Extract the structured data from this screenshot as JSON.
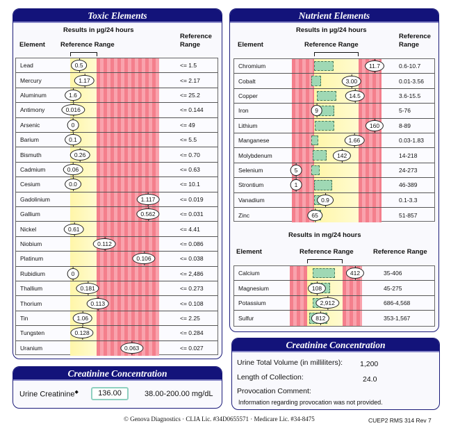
{
  "toxic": {
    "title": "Toxic Elements",
    "units": "Results in µg/24 hours",
    "col_element": "Element",
    "col_range": "Reference Range",
    "col_ref": "Reference Range",
    "rows": [
      {
        "name": "Lead",
        "value": "0.5",
        "ref": "<= 1.5"
      },
      {
        "name": "Mercury",
        "value": "1.17",
        "ref": "<= 2.17"
      },
      {
        "name": "Aluminum",
        "value": "1.6",
        "ref": "<= 25.2"
      },
      {
        "name": "Antimony",
        "value": "0.016",
        "ref": "<= 0.144"
      },
      {
        "name": "Arsenic",
        "value": "0",
        "ref": "<= 49"
      },
      {
        "name": "Barium",
        "value": "0.1",
        "ref": "<= 5.5"
      },
      {
        "name": "Bismuth",
        "value": "0.26",
        "ref": "<= 0.70"
      },
      {
        "name": "Cadmium",
        "value": "0.06",
        "ref": "<= 0.63"
      },
      {
        "name": "Cesium",
        "value": "0.0",
        "ref": "<= 10.1"
      },
      {
        "name": "Gadolinium",
        "value": "1.117",
        "ref": "<= 0.019"
      },
      {
        "name": "Gallium",
        "value": "0.562",
        "ref": "<= 0.031"
      },
      {
        "name": "Nickel",
        "value": "0.61",
        "ref": "<= 4.41"
      },
      {
        "name": "Niobium",
        "value": "0.112",
        "ref": "<= 0.086"
      },
      {
        "name": "Platinum",
        "value": "0.106",
        "ref": "<= 0.038"
      },
      {
        "name": "Rubidium",
        "value": "0",
        "ref": "<= 2,486"
      },
      {
        "name": "Thallium",
        "value": "0.181",
        "ref": "<= 0.273"
      },
      {
        "name": "Thorium",
        "value": "0.113",
        "ref": "<= 0.108"
      },
      {
        "name": "Tin",
        "value": "1.06",
        "ref": "<= 2.25"
      },
      {
        "name": "Tungsten",
        "value": "0.128",
        "ref": "<= 0.284"
      },
      {
        "name": "Uranium",
        "value": "0.063",
        "ref": "<= 0.027"
      }
    ]
  },
  "nutrient": {
    "title": "Nutrient Elements",
    "units": "Results in µg/24 hours",
    "col_element": "Element",
    "col_range": "Reference Range",
    "col_ref": "Reference Range",
    "rows": [
      {
        "name": "Chromium",
        "value": "11.7",
        "ref": "0.6-10.7"
      },
      {
        "name": "Cobalt",
        "value": "3.00",
        "ref": "0.01-3.56"
      },
      {
        "name": "Copper",
        "value": "14.5",
        "ref": "3.6-15.5"
      },
      {
        "name": "Iron",
        "value": "9",
        "ref": "5-76"
      },
      {
        "name": "Lithium",
        "value": "160",
        "ref": "8-89"
      },
      {
        "name": "Manganese",
        "value": "1.66",
        "ref": "0.03-1.83"
      },
      {
        "name": "Molybdenum",
        "value": "142",
        "ref": "14-218"
      },
      {
        "name": "Selenium",
        "value": "5",
        "ref": "24-273"
      },
      {
        "name": "Strontium",
        "value": "1",
        "ref": "46-389"
      },
      {
        "name": "Vanadium",
        "value": "0.9",
        "ref": "0.1-3.3"
      },
      {
        "name": "Zinc",
        "value": "65",
        "ref": "51-857"
      }
    ]
  },
  "minerals": {
    "units": "Results in mg/24 hours",
    "col_element": "Element",
    "col_range": "Reference Range",
    "col_ref": "Reference Range",
    "rows": [
      {
        "name": "Calcium",
        "value": "412",
        "ref": "35-406"
      },
      {
        "name": "Magnesium",
        "value": "108",
        "ref": "45-275"
      },
      {
        "name": "Potassium",
        "value": "2,912",
        "ref": "686-4,568"
      },
      {
        "name": "Sulfur",
        "value": "812",
        "ref": "353-1,567"
      }
    ]
  },
  "creatinine_left": {
    "title": "Creatinine Concentration",
    "label": "Urine Creatinine",
    "marker": "◆",
    "value": "136.00",
    "range": "38.00-200.00 mg/dL"
  },
  "creatinine_right": {
    "title": "Creatinine Concentration",
    "volume_label": "Urine Total Volume (in milliliters):",
    "volume": "1,200",
    "length_label": "Length of Collection:",
    "length": "24.0",
    "provocation_label": "Provocation Comment:",
    "provocation": "Information regarding provocation was not provided."
  },
  "footer": {
    "copyright": "© Genova Diagnostics · CLIA Lic. #34D0655571 · Medicare Lic. #34-8475",
    "code": "CUEP2 RMS 314 Rev 7"
  },
  "colors": {
    "header": "#13137a",
    "red_zone": "#f47f8c",
    "yellow_zone": "#fff6a8",
    "green_box": "#9fd8b4"
  }
}
